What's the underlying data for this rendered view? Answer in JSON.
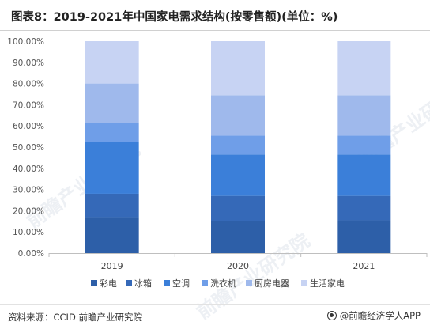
{
  "title": "图表8：2019-2021年中国家电需求结构(按零售额)(单位：%)",
  "source": "资料来源：CCID 前瞻产业研究院",
  "brand": "@前瞻经济学人APP",
  "watermark": "前瞻产业研究院",
  "chart_data": {
    "type": "bar",
    "stacked": true,
    "categories": [
      "2019",
      "2020",
      "2021"
    ],
    "y_ticks": [
      "0.00%",
      "10.00%",
      "20.00%",
      "30.00%",
      "40.00%",
      "50.00%",
      "60.00%",
      "70.00%",
      "80.00%",
      "90.00%",
      "100.00%"
    ],
    "ylim": [
      0,
      100
    ],
    "legend_position": "bottom",
    "series": [
      {
        "name": "彩电",
        "color": "#2d5fa8",
        "values": [
          17.0,
          15.0,
          15.5
        ]
      },
      {
        "name": "冰箱",
        "color": "#3569b8",
        "values": [
          11.0,
          12.0,
          11.5
        ]
      },
      {
        "name": "空调",
        "color": "#3b7fd9",
        "values": [
          24.5,
          19.5,
          19.5
        ]
      },
      {
        "name": "洗衣机",
        "color": "#6f9ee8",
        "values": [
          9.0,
          9.0,
          9.0
        ]
      },
      {
        "name": "厨房电器",
        "color": "#9fb9ec",
        "values": [
          18.5,
          19.0,
          19.0
        ]
      },
      {
        "name": "生活家电",
        "color": "#c7d3f3",
        "values": [
          20.0,
          25.5,
          25.5
        ]
      }
    ]
  }
}
